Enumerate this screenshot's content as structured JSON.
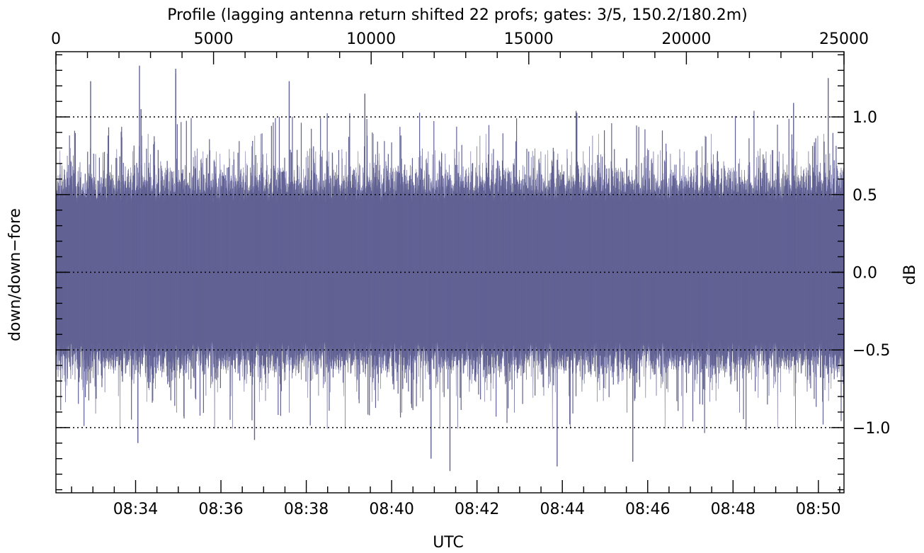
{
  "chart_data": {
    "type": "line",
    "title": "Profile (lagging antenna return shifted 22 profs; gates: 3/5, 150.2/180.2m)",
    "xlabel": "UTC",
    "ylabel": "down/down−fore",
    "ylabel_right": "dB",
    "x_time_ticks": [
      "08:34",
      "08:36",
      "08:38",
      "08:40",
      "08:42",
      "08:44",
      "08:46",
      "08:48",
      "08:50"
    ],
    "x_time_range": [
      "08:32:08",
      "08:50:36"
    ],
    "x_profile_ticks": [
      0,
      5000,
      10000,
      15000,
      20000,
      25000
    ],
    "x_profile_range": [
      0,
      25000
    ],
    "y_ticks": [
      1.0,
      0.5,
      0.0,
      -0.5,
      -1.0
    ],
    "y_tick_labels": [
      "1.0",
      "0.5",
      "0.0",
      "−0.5",
      "−1.0"
    ],
    "ylim": [
      -1.42,
      1.42
    ],
    "grid": "dotted horizontal lines at y ticks",
    "series": [
      {
        "color": "#616194",
        "band_upper_typical": 0.5,
        "band_lower_typical": -0.5,
        "spikes": [
          {
            "profile": 1100,
            "value": 1.23
          },
          {
            "profile": 2700,
            "value": 1.05
          },
          {
            "profile": 2600,
            "value": -1.1
          },
          {
            "profile": 2650,
            "value": 1.33
          },
          {
            "profile": 3800,
            "value": 1.28
          },
          {
            "profile": 3800,
            "value": 1.31
          },
          {
            "profile": 6300,
            "value": -1.08
          },
          {
            "profile": 7400,
            "value": 1.23
          },
          {
            "profile": 9800,
            "value": 1.15
          },
          {
            "profile": 11900,
            "value": -1.2
          },
          {
            "profile": 12500,
            "value": -1.28
          },
          {
            "profile": 15900,
            "value": -1.25
          },
          {
            "profile": 18300,
            "value": -1.22
          },
          {
            "profile": 23400,
            "value": 1.09
          },
          {
            "profile": 24500,
            "value": 1.25
          }
        ]
      }
    ]
  }
}
